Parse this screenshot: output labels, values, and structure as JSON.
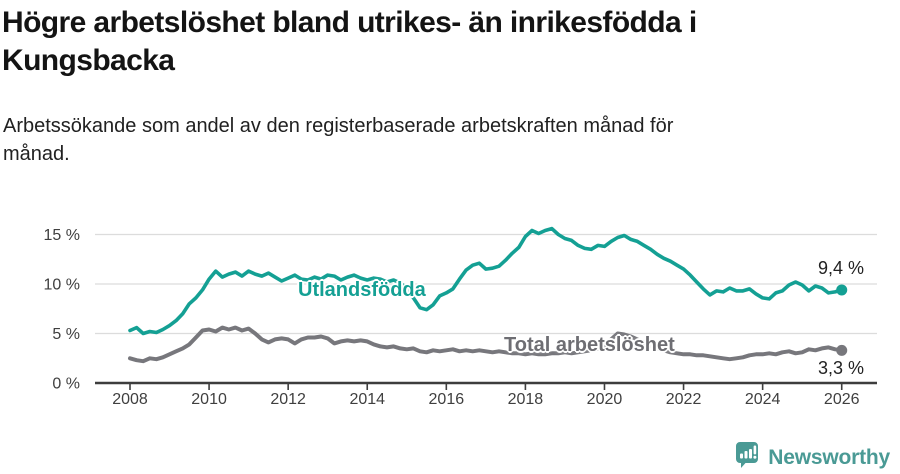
{
  "header": {
    "title_line1": "Högre arbetslöshet bland utrikes- än inrikesfödda i",
    "title_line2": "Kungsbacka",
    "subtitle_line1": "Arbetssökande som andel av den registerbaserade arbetskraften månad för",
    "subtitle_line2": "månad."
  },
  "footer": {
    "brand": "Newsworthy",
    "brand_color": "#4a9a95",
    "logo_icon": "newsworthy-speech-bubble-chart-icon"
  },
  "chart_data": {
    "type": "line",
    "title": "Högre arbetslöshet bland utrikes- än inrikesfödda i Kungsbacka",
    "subtitle": "Arbetssökande som andel av den registerbaserade arbetskraften månad för månad.",
    "x_axis": {
      "start_year": 2008,
      "end_year": 2026,
      "tick_years": [
        2008,
        2010,
        2012,
        2014,
        2016,
        2018,
        2020,
        2022,
        2024,
        2026
      ],
      "tick_labels": [
        "2008",
        "2010",
        "2012",
        "2014",
        "2016",
        "2018",
        "2020",
        "2022",
        "2024",
        "2026"
      ]
    },
    "y_axis": {
      "tick_values": [
        0,
        5,
        10,
        15
      ],
      "tick_labels": [
        "0 %",
        "5 %",
        "10 %",
        "15 %"
      ],
      "ylim": [
        0,
        16.6
      ],
      "grid": true
    },
    "colors": {
      "grid": "#dcdcdc",
      "axis": "#3d3d3d",
      "tick_text": "#3f3f3f"
    },
    "series": [
      {
        "name": "Utlandsfödda",
        "color": "#14a094",
        "end_label": "9,4 %",
        "end_value": 9.4,
        "values": [
          5.3,
          5.6,
          5.0,
          5.2,
          5.1,
          5.4,
          5.8,
          6.3,
          7.0,
          8.0,
          8.6,
          9.4,
          10.5,
          11.3,
          10.7,
          11.0,
          11.2,
          10.8,
          11.3,
          11.0,
          10.8,
          11.1,
          10.7,
          10.3,
          10.6,
          10.9,
          10.5,
          10.4,
          10.7,
          10.5,
          10.9,
          10.8,
          10.4,
          10.7,
          10.9,
          10.6,
          10.4,
          10.6,
          10.5,
          10.2,
          10.4,
          10.1,
          9.6,
          8.6,
          7.6,
          7.4,
          7.9,
          8.8,
          9.1,
          9.5,
          10.5,
          11.4,
          11.9,
          12.1,
          11.5,
          11.6,
          11.8,
          12.4,
          13.1,
          13.7,
          14.8,
          15.4,
          15.1,
          15.4,
          15.6,
          15.0,
          14.6,
          14.4,
          13.9,
          13.6,
          13.5,
          13.9,
          13.8,
          14.3,
          14.7,
          14.9,
          14.5,
          14.3,
          13.9,
          13.5,
          13.0,
          12.6,
          12.3,
          11.9,
          11.5,
          10.9,
          10.2,
          9.5,
          8.9,
          9.3,
          9.2,
          9.6,
          9.3,
          9.3,
          9.5,
          9.0,
          8.6,
          8.5,
          9.1,
          9.3,
          9.9,
          10.2,
          9.9,
          9.3,
          9.8,
          9.6,
          9.1,
          9.2,
          9.4
        ]
      },
      {
        "name": "Total arbetslöshet",
        "color": "#77777c",
        "end_label": "3,3 %",
        "end_value": 3.3,
        "values": [
          2.5,
          2.3,
          2.2,
          2.5,
          2.4,
          2.6,
          2.9,
          3.2,
          3.5,
          3.9,
          4.6,
          5.3,
          5.4,
          5.2,
          5.6,
          5.4,
          5.6,
          5.3,
          5.5,
          5.0,
          4.4,
          4.1,
          4.4,
          4.5,
          4.4,
          4.0,
          4.4,
          4.6,
          4.6,
          4.7,
          4.5,
          4.0,
          4.2,
          4.3,
          4.2,
          4.3,
          4.2,
          3.9,
          3.7,
          3.6,
          3.7,
          3.5,
          3.4,
          3.5,
          3.2,
          3.1,
          3.3,
          3.2,
          3.3,
          3.4,
          3.2,
          3.3,
          3.2,
          3.3,
          3.2,
          3.1,
          3.2,
          3.1,
          3.0,
          3.0,
          2.9,
          3.0,
          2.9,
          2.9,
          3.0,
          3.0,
          3.1,
          3.0,
          3.1,
          3.2,
          3.3,
          3.5,
          3.7,
          4.4,
          5.0,
          4.9,
          4.7,
          4.4,
          4.1,
          3.8,
          3.5,
          3.3,
          3.1,
          3.0,
          2.9,
          2.9,
          2.8,
          2.8,
          2.7,
          2.6,
          2.5,
          2.4,
          2.5,
          2.6,
          2.8,
          2.9,
          2.9,
          3.0,
          2.9,
          3.1,
          3.2,
          3.0,
          3.1,
          3.4,
          3.3,
          3.5,
          3.6,
          3.4,
          3.3
        ]
      }
    ]
  }
}
